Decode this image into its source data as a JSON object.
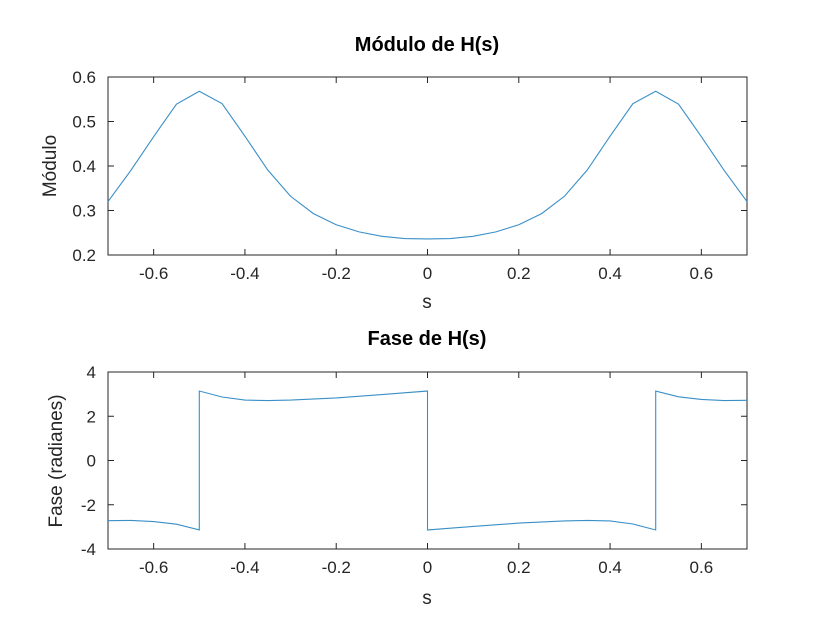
{
  "colors": {
    "series": "#3a8fc7",
    "axes": "#262626",
    "background": "#ffffff"
  },
  "chart_data": [
    {
      "type": "line",
      "title": "Módulo de H(s)",
      "xlabel": "s",
      "ylabel": "Módulo",
      "xlim": [
        -0.7,
        0.7
      ],
      "ylim": [
        0.2,
        0.6
      ],
      "xticks": [
        -0.6,
        -0.4,
        -0.2,
        0,
        0.2,
        0.4,
        0.6
      ],
      "xtick_labels": [
        "-0.6",
        "-0.4",
        "-0.2",
        "0",
        "0.2",
        "0.4",
        "0.6"
      ],
      "yticks": [
        0.2,
        0.3,
        0.4,
        0.5,
        0.6
      ],
      "ytick_labels": [
        "0.2",
        "0.3",
        "0.4",
        "0.5",
        "0.6"
      ],
      "grid": false,
      "series": [
        {
          "x": [
            -0.7,
            -0.65,
            -0.6,
            -0.55,
            -0.5,
            -0.45,
            -0.4,
            -0.35,
            -0.3,
            -0.25,
            -0.2,
            -0.15,
            -0.1,
            -0.05,
            0,
            0.05,
            0.1,
            0.15,
            0.2,
            0.25,
            0.3,
            0.35,
            0.4,
            0.45,
            0.5,
            0.55,
            0.6,
            0.65,
            0.7
          ],
          "y": [
            0.32,
            0.39,
            0.466,
            0.539,
            0.568,
            0.54,
            0.467,
            0.391,
            0.332,
            0.293,
            0.268,
            0.252,
            0.242,
            0.237,
            0.236,
            0.237,
            0.242,
            0.252,
            0.268,
            0.293,
            0.332,
            0.391,
            0.467,
            0.54,
            0.568,
            0.539,
            0.466,
            0.39,
            0.32
          ]
        }
      ]
    },
    {
      "type": "line",
      "title": "Fase de H(s)",
      "xlabel": "s",
      "ylabel": "Fase (radianes)",
      "xlim": [
        -0.7,
        0.7
      ],
      "ylim": [
        -4,
        4
      ],
      "xticks": [
        -0.6,
        -0.4,
        -0.2,
        0,
        0.2,
        0.4,
        0.6
      ],
      "xtick_labels": [
        "-0.6",
        "-0.4",
        "-0.2",
        "0",
        "0.2",
        "0.4",
        "0.6"
      ],
      "yticks": [
        -4,
        -2,
        0,
        2,
        4
      ],
      "ytick_labels": [
        "-4",
        "-2",
        "0",
        "2",
        "4"
      ],
      "grid": false,
      "series": [
        {
          "x": [
            -0.7,
            -0.65,
            -0.6,
            -0.55,
            -0.5,
            -0.5,
            -0.45,
            -0.4,
            -0.35,
            -0.3,
            -0.2,
            -0.1,
            0,
            0,
            0.05,
            0.1,
            0.2,
            0.3,
            0.35,
            0.4,
            0.45,
            0.5,
            0.5,
            0.55,
            0.6,
            0.65,
            0.7
          ],
          "y": [
            -2.72,
            -2.71,
            -2.76,
            -2.88,
            -3.14,
            3.14,
            2.87,
            2.73,
            2.71,
            2.73,
            2.83,
            2.98,
            3.14,
            -3.14,
            -3.06,
            -2.98,
            -2.83,
            -2.73,
            -2.71,
            -2.73,
            -2.87,
            -3.14,
            3.14,
            2.88,
            2.76,
            2.71,
            2.72
          ]
        }
      ]
    }
  ]
}
